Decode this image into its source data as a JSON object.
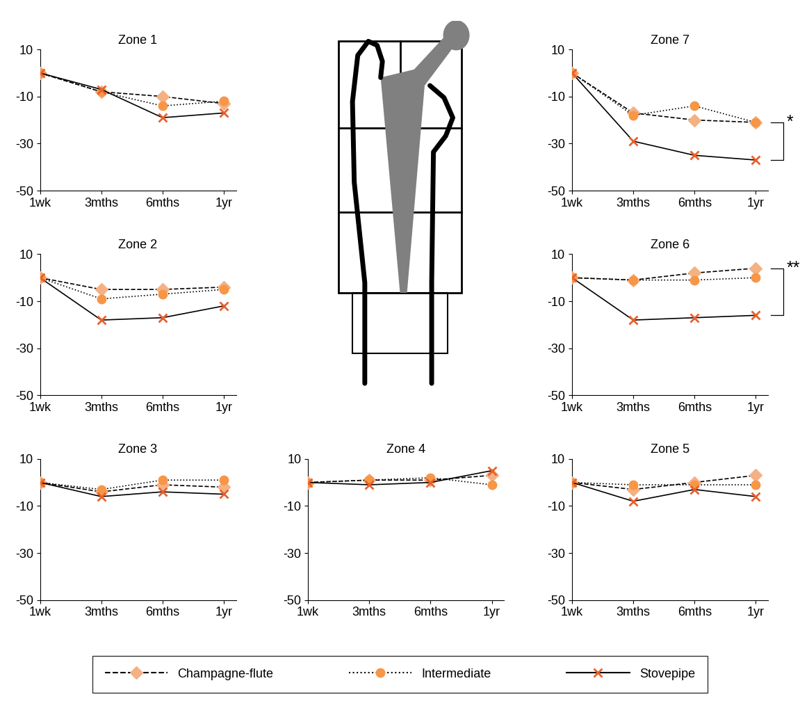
{
  "chart_data": [
    {
      "type": "line",
      "title": "Zone 1",
      "categories": [
        "1wk",
        "3mths",
        "6mths",
        "1yr"
      ],
      "ylim": [
        -50,
        10
      ],
      "yticks": [
        -50,
        -30,
        -10,
        10
      ],
      "legend": "bottom",
      "series": [
        {
          "name": "Champagne-flute",
          "color": "#f4b183",
          "marker": "diamond",
          "line_style": "dashed",
          "values": [
            0,
            -8,
            -10,
            -13
          ]
        },
        {
          "name": "Intermediate",
          "color": "#f79646",
          "marker": "circle",
          "line_style": "dotted",
          "values": [
            0,
            -8,
            -14,
            -12
          ]
        },
        {
          "name": "Stovepipe",
          "color": "#e8602c",
          "marker": "x",
          "line_style": "solid",
          "values": [
            0,
            -7,
            -19,
            -17
          ]
        }
      ]
    },
    {
      "type": "line",
      "title": "Zone 2",
      "categories": [
        "1wk",
        "3mths",
        "6mths",
        "1yr"
      ],
      "ylim": [
        -50,
        10
      ],
      "yticks": [
        -50,
        -30,
        -10,
        10
      ],
      "series": [
        {
          "name": "Champagne-flute",
          "color": "#f4b183",
          "marker": "diamond",
          "line_style": "dashed",
          "values": [
            0,
            -5,
            -5,
            -4
          ]
        },
        {
          "name": "Intermediate",
          "color": "#f79646",
          "marker": "circle",
          "line_style": "dotted",
          "values": [
            0,
            -9,
            -7,
            -5
          ]
        },
        {
          "name": "Stovepipe",
          "color": "#e8602c",
          "marker": "x",
          "line_style": "solid",
          "values": [
            0,
            -18,
            -17,
            -12
          ]
        }
      ]
    },
    {
      "type": "line",
      "title": "Zone 3",
      "categories": [
        "1wk",
        "3mths",
        "6mths",
        "1yr"
      ],
      "ylim": [
        -50,
        10
      ],
      "yticks": [
        -50,
        -30,
        -10,
        10
      ],
      "series": [
        {
          "name": "Champagne-flute",
          "color": "#f4b183",
          "marker": "diamond",
          "line_style": "dashed",
          "values": [
            0,
            -4,
            -1,
            -2
          ]
        },
        {
          "name": "Intermediate",
          "color": "#f79646",
          "marker": "circle",
          "line_style": "dotted",
          "values": [
            0,
            -3,
            1,
            1
          ]
        },
        {
          "name": "Stovepipe",
          "color": "#e8602c",
          "marker": "x",
          "line_style": "solid",
          "values": [
            0,
            -6,
            -4,
            -5
          ]
        }
      ]
    },
    {
      "type": "line",
      "title": "Zone 4",
      "categories": [
        "1wk",
        "3mths",
        "6mths",
        "1yr"
      ],
      "ylim": [
        -50,
        10
      ],
      "yticks": [
        -50,
        -30,
        -10,
        10
      ],
      "series": [
        {
          "name": "Champagne-flute",
          "color": "#f4b183",
          "marker": "diamond",
          "line_style": "dashed",
          "values": [
            0,
            1,
            1,
            3
          ]
        },
        {
          "name": "Intermediate",
          "color": "#f79646",
          "marker": "circle",
          "line_style": "dotted",
          "values": [
            0,
            1,
            2,
            -1
          ]
        },
        {
          "name": "Stovepipe",
          "color": "#e8602c",
          "marker": "x",
          "line_style": "solid",
          "values": [
            0,
            -1,
            0,
            5
          ]
        }
      ]
    },
    {
      "type": "line",
      "title": "Zone 5",
      "categories": [
        "1wk",
        "3mths",
        "6mths",
        "1yr"
      ],
      "ylim": [
        -50,
        10
      ],
      "yticks": [
        -50,
        -30,
        -10,
        10
      ],
      "series": [
        {
          "name": "Champagne-flute",
          "color": "#f4b183",
          "marker": "diamond",
          "line_style": "dashed",
          "values": [
            0,
            -3,
            0,
            3
          ]
        },
        {
          "name": "Intermediate",
          "color": "#f79646",
          "marker": "circle",
          "line_style": "dotted",
          "values": [
            0,
            -1,
            -1,
            -1
          ]
        },
        {
          "name": "Stovepipe",
          "color": "#e8602c",
          "marker": "x",
          "line_style": "solid",
          "values": [
            0,
            -8,
            -3,
            -6
          ]
        }
      ]
    },
    {
      "type": "line",
      "title": "Zone 6",
      "categories": [
        "1wk",
        "3mths",
        "6mths",
        "1yr"
      ],
      "ylim": [
        -50,
        10
      ],
      "yticks": [
        -50,
        -30,
        -10,
        10
      ],
      "annotations": [
        {
          "text": "**",
          "x": "1yr",
          "series": [
            "Champagne-flute",
            "Stovepipe"
          ]
        }
      ],
      "series": [
        {
          "name": "Champagne-flute",
          "color": "#f4b183",
          "marker": "diamond",
          "line_style": "dashed",
          "values": [
            0,
            -1,
            2,
            4
          ]
        },
        {
          "name": "Intermediate",
          "color": "#f79646",
          "marker": "circle",
          "line_style": "dotted",
          "values": [
            0,
            -1,
            -1,
            0
          ]
        },
        {
          "name": "Stovepipe",
          "color": "#e8602c",
          "marker": "x",
          "line_style": "solid",
          "values": [
            0,
            -18,
            -17,
            -16
          ]
        }
      ]
    },
    {
      "type": "line",
      "title": "Zone 7",
      "categories": [
        "1wk",
        "3mths",
        "6mths",
        "1yr"
      ],
      "ylim": [
        -50,
        10
      ],
      "yticks": [
        -50,
        -30,
        -10,
        10
      ],
      "annotations": [
        {
          "text": "*",
          "x": "1yr",
          "series": [
            "Intermediate",
            "Stovepipe"
          ]
        }
      ],
      "series": [
        {
          "name": "Champagne-flute",
          "color": "#f4b183",
          "marker": "diamond",
          "line_style": "dashed",
          "values": [
            0,
            -17,
            -20,
            -21
          ]
        },
        {
          "name": "Intermediate",
          "color": "#f79646",
          "marker": "circle",
          "line_style": "dotted",
          "values": [
            0,
            -18,
            -14,
            -21
          ]
        },
        {
          "name": "Stovepipe",
          "color": "#e8602c",
          "marker": "x",
          "line_style": "solid",
          "values": [
            0,
            -29,
            -35,
            -37
          ]
        }
      ]
    }
  ]
}
